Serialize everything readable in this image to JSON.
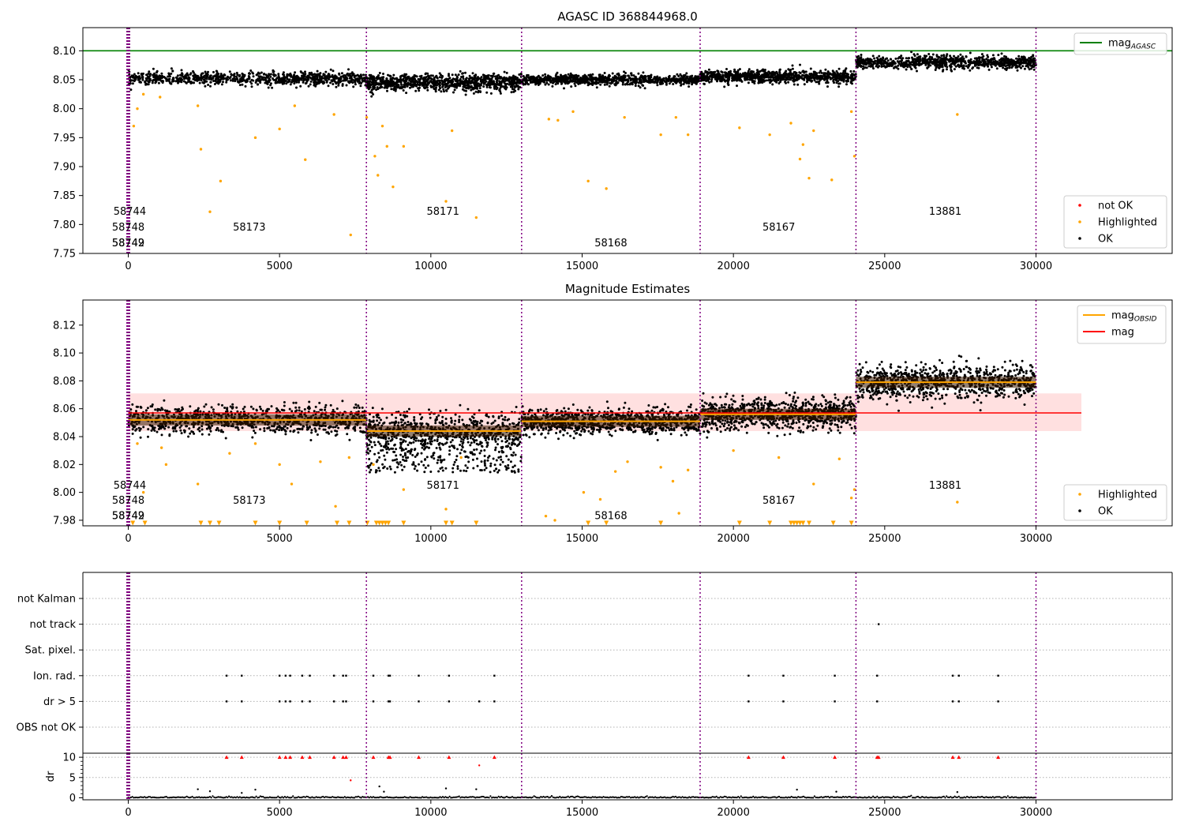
{
  "chart_data": [
    {
      "type": "scatter",
      "title": "AGASC ID 368844968.0",
      "xlim": [
        -1500,
        34500
      ],
      "ylim": [
        7.75,
        8.14
      ],
      "yticks": [
        7.75,
        7.8,
        7.85,
        7.9,
        7.95,
        8.0,
        8.05,
        8.1
      ],
      "xticks": [
        0,
        5000,
        10000,
        15000,
        20000,
        25000,
        30000
      ],
      "grid": false,
      "legend_upper": {
        "position": "upper-right",
        "entries": [
          {
            "label": "mag",
            "sub": "AGASC",
            "color": "#008000"
          }
        ]
      },
      "legend_lower": {
        "position": "lower-right",
        "entries": [
          {
            "label": "not OK",
            "color": "#ff0000"
          },
          {
            "label": "Highlighted",
            "color": "#ffa500"
          },
          {
            "label": "OK",
            "color": "#000000"
          }
        ]
      },
      "mag_agasc": 8.1,
      "obsid_boundaries": [
        0,
        7870,
        13000,
        18900,
        24050,
        30000
      ],
      "obsid_labels": [
        {
          "text": "58744",
          "x": 50,
          "y": 7.822
        },
        {
          "text": "58748",
          "x": 0,
          "y": 7.795
        },
        {
          "text": "58742",
          "x": 0,
          "y": 7.768
        },
        {
          "text": "58749",
          "x": 0,
          "y": 7.768
        },
        {
          "text": "58173",
          "x": 4000,
          "y": 7.795
        },
        {
          "text": "58171",
          "x": 10400,
          "y": 7.822
        },
        {
          "text": "58168",
          "x": 15950,
          "y": 7.768
        },
        {
          "text": "58167",
          "x": 21500,
          "y": 7.795
        },
        {
          "text": "13881",
          "x": 27000,
          "y": 7.822
        }
      ],
      "series": [
        {
          "label": "OK",
          "color": "#000000",
          "segments": [
            {
              "x": [
                0,
                7870
              ],
              "center": 8.052,
              "spread": 0.01
            },
            {
              "x": [
                7870,
                13000
              ],
              "center": 8.045,
              "spread": 0.013
            },
            {
              "x": [
                13000,
                18900
              ],
              "center": 8.05,
              "spread": 0.008
            },
            {
              "x": [
                18900,
                24050
              ],
              "center": 8.055,
              "spread": 0.01
            },
            {
              "x": [
                24050,
                30000
              ],
              "center": 8.08,
              "spread": 0.01
            }
          ]
        },
        {
          "label": "Highlighted",
          "color": "#ffa500",
          "points": [
            [
              180,
              7.97
            ],
            [
              300,
              8.0
            ],
            [
              500,
              8.025
            ],
            [
              1050,
              8.02
            ],
            [
              2300,
              8.005
            ],
            [
              2400,
              7.93
            ],
            [
              2700,
              7.822
            ],
            [
              3050,
              7.875
            ],
            [
              4200,
              7.95
            ],
            [
              5000,
              7.965
            ],
            [
              5500,
              8.005
            ],
            [
              5850,
              7.912
            ],
            [
              6800,
              7.99
            ],
            [
              7350,
              7.782
            ],
            [
              7880,
              7.985
            ],
            [
              8150,
              7.918
            ],
            [
              8250,
              7.885
            ],
            [
              8400,
              7.97
            ],
            [
              8550,
              7.935
            ],
            [
              8750,
              7.865
            ],
            [
              9100,
              7.935
            ],
            [
              10500,
              7.84
            ],
            [
              10700,
              7.962
            ],
            [
              11500,
              7.812
            ],
            [
              13900,
              7.982
            ],
            [
              14200,
              7.98
            ],
            [
              14700,
              7.995
            ],
            [
              15200,
              7.875
            ],
            [
              15800,
              7.862
            ],
            [
              16400,
              7.985
            ],
            [
              17600,
              7.955
            ],
            [
              18100,
              7.985
            ],
            [
              18500,
              7.955
            ],
            [
              20200,
              7.967
            ],
            [
              21200,
              7.955
            ],
            [
              21900,
              7.975
            ],
            [
              22200,
              7.913
            ],
            [
              22300,
              7.938
            ],
            [
              22500,
              7.88
            ],
            [
              22650,
              7.962
            ],
            [
              23250,
              7.877
            ],
            [
              23900,
              7.995
            ],
            [
              24000,
              7.918
            ],
            [
              27400,
              7.99
            ]
          ]
        }
      ]
    },
    {
      "type": "scatter",
      "title": "Magnitude Estimates",
      "xlim": [
        -1500,
        34500
      ],
      "ylim": [
        7.976,
        8.138
      ],
      "yticks": [
        7.98,
        8.0,
        8.02,
        8.04,
        8.06,
        8.08,
        8.1,
        8.12
      ],
      "xticks": [
        0,
        5000,
        10000,
        15000,
        20000,
        25000,
        30000
      ],
      "grid": false,
      "legend_upper": {
        "position": "upper-right",
        "entries": [
          {
            "label": "mag",
            "sub": "OBSID",
            "color": "#ffa500"
          },
          {
            "label": "mag",
            "sub": "",
            "color": "#ff0000"
          }
        ]
      },
      "legend_lower": {
        "position": "lower-right",
        "entries": [
          {
            "label": "Highlighted",
            "color": "#ffa500"
          },
          {
            "label": "OK",
            "color": "#000000"
          }
        ]
      },
      "mag": 8.057,
      "mag_band": [
        8.044,
        8.071
      ],
      "obsid_boundaries": [
        0,
        7870,
        13000,
        18900,
        24050,
        30000
      ],
      "obsid_mags": [
        {
          "x": [
            0,
            7870
          ],
          "mag": 8.052
        },
        {
          "x": [
            7870,
            13000
          ],
          "mag": 8.044
        },
        {
          "x": [
            13000,
            18900
          ],
          "mag": 8.051
        },
        {
          "x": [
            18900,
            24050
          ],
          "mag": 8.056
        },
        {
          "x": [
            24050,
            30000
          ],
          "mag": 8.079
        }
      ],
      "obsid_labels": [
        {
          "text": "58744",
          "x": 50,
          "y": 8.005
        },
        {
          "text": "58748",
          "x": 0,
          "y": 7.994
        },
        {
          "text": "58742",
          "x": 0,
          "y": 7.983
        },
        {
          "text": "58749",
          "x": 0,
          "y": 7.983
        },
        {
          "text": "58173",
          "x": 4000,
          "y": 7.994
        },
        {
          "text": "58171",
          "x": 10400,
          "y": 8.005
        },
        {
          "text": "58168",
          "x": 15950,
          "y": 7.983
        },
        {
          "text": "58167",
          "x": 21500,
          "y": 7.994
        },
        {
          "text": "13881",
          "x": 27000,
          "y": 8.005
        }
      ],
      "series": [
        {
          "label": "OK",
          "color": "#000000",
          "segments": [
            {
              "x": [
                0,
                7870
              ],
              "center": 8.052,
              "spread": 0.009,
              "tail": 0
            },
            {
              "x": [
                7870,
                13000
              ],
              "center": 8.044,
              "spread": 0.012,
              "tail": 0.03
            },
            {
              "x": [
                13000,
                18900
              ],
              "center": 8.051,
              "spread": 0.008,
              "tail": 0
            },
            {
              "x": [
                18900,
                24050
              ],
              "center": 8.056,
              "spread": 0.01,
              "tail": 0
            },
            {
              "x": [
                24050,
                30000
              ],
              "center": 8.079,
              "spread": 0.011,
              "tail": 0
            }
          ]
        },
        {
          "label": "Highlighted",
          "color": "#ffa500",
          "points": [
            [
              300,
              8.035
            ],
            [
              500,
              8.0
            ],
            [
              1100,
              8.032
            ],
            [
              1250,
              8.02
            ],
            [
              2300,
              8.006
            ],
            [
              3350,
              8.028
            ],
            [
              4200,
              8.035
            ],
            [
              5000,
              8.02
            ],
            [
              5400,
              8.006
            ],
            [
              6350,
              8.022
            ],
            [
              6850,
              7.99
            ],
            [
              7300,
              8.025
            ],
            [
              8100,
              8.02
            ],
            [
              9100,
              8.002
            ],
            [
              10500,
              7.988
            ],
            [
              11000,
              8.025
            ],
            [
              13800,
              7.983
            ],
            [
              14100,
              7.98
            ],
            [
              15050,
              8.0
            ],
            [
              15600,
              7.995
            ],
            [
              16100,
              8.015
            ],
            [
              16500,
              8.022
            ],
            [
              17600,
              8.018
            ],
            [
              18000,
              8.008
            ],
            [
              18200,
              7.985
            ],
            [
              18500,
              8.016
            ],
            [
              20000,
              8.03
            ],
            [
              21500,
              8.025
            ],
            [
              22650,
              8.006
            ],
            [
              23500,
              8.024
            ],
            [
              23900,
              7.996
            ],
            [
              24000,
              8.002
            ],
            [
              27400,
              7.993
            ]
          ]
        },
        {
          "label": "Highlighted (below range)",
          "color": "#ffa500",
          "marker": "triangle-down",
          "x": [
            150,
            550,
            2400,
            2700,
            3000,
            4200,
            5000,
            5900,
            6900,
            7300,
            7900,
            8200,
            8300,
            8400,
            8500,
            8600,
            9100,
            10500,
            10700,
            11500,
            15200,
            15800,
            17600,
            20200,
            21200,
            21900,
            22000,
            22100,
            22200,
            22300,
            22500,
            23300,
            23900
          ]
        }
      ]
    },
    {
      "type": "scatter",
      "title": "",
      "xlim": [
        -1500,
        34500
      ],
      "xticks": [
        0,
        5000,
        10000,
        15000,
        20000,
        25000,
        30000
      ],
      "flag_labels": [
        "not Kalman",
        "not track",
        "Sat. pixel.",
        "Ion. rad.",
        "dr > 5",
        "OBS not OK"
      ],
      "flags": {
        "not Kalman": [],
        "not track": [
          24800
        ],
        "Sat. pixel.": [],
        "Ion. rad.": [
          3250,
          3750,
          5000,
          5200,
          5350,
          5750,
          6000,
          6800,
          7100,
          7200,
          8100,
          8600,
          8650,
          9600,
          10600,
          12100,
          20500,
          21650,
          23350,
          24750,
          27250,
          27450,
          28750
        ],
        "dr > 5": [
          3250,
          3750,
          5000,
          5200,
          5350,
          5750,
          6000,
          6800,
          7100,
          7200,
          8100,
          8600,
          8650,
          9600,
          10600,
          11600,
          12100,
          20500,
          21650,
          23350,
          24750,
          27250,
          27450,
          28750
        ],
        "OBS not OK": []
      },
      "dr": {
        "ylabel": "dr",
        "ylim": [
          -0.5,
          11
        ],
        "yticks": [
          0,
          5,
          10
        ],
        "clip_value": 10,
        "clipped_x": [
          3250,
          3750,
          5000,
          5200,
          5350,
          5750,
          6000,
          6800,
          7100,
          7200,
          8100,
          8600,
          8650,
          9600,
          10600,
          12100,
          20500,
          21650,
          23350,
          24750,
          24800,
          27250,
          27450,
          28750
        ],
        "outliers": [
          [
            2300,
            2.1
          ],
          [
            2700,
            1.6
          ],
          [
            3750,
            1.2
          ],
          [
            4200,
            2.0
          ],
          [
            7350,
            4.3
          ],
          [
            8300,
            2.8
          ],
          [
            8450,
            1.5
          ],
          [
            10500,
            2.3
          ],
          [
            11600,
            8.0
          ],
          [
            11500,
            2.1
          ],
          [
            22100,
            2.0
          ],
          [
            23400,
            1.5
          ],
          [
            27400,
            1.4
          ]
        ]
      },
      "obsid_boundaries": [
        0,
        7870,
        13000,
        18900,
        24050,
        30000
      ]
    }
  ]
}
